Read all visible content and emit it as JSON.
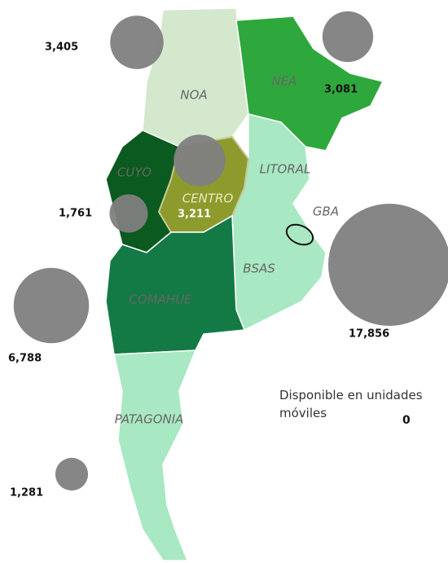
{
  "regions": [
    "NOA",
    "NEA",
    "CUYO",
    "CENTRO",
    "LITORAL",
    "GBA",
    "BSAS",
    "COMAHUE",
    "PATAGONIA"
  ],
  "bubbles": [
    {
      "value": 3405,
      "label": "3,405"
    },
    {
      "value": 3081,
      "label": "3,081"
    },
    {
      "value": 3211,
      "label": "3,211"
    },
    {
      "value": 1761,
      "label": "1,761"
    },
    {
      "value": 17856,
      "label": "17,856"
    },
    {
      "value": 6788,
      "label": "6,788"
    },
    {
      "value": 1281,
      "label": "1,281"
    }
  ],
  "note": {
    "text": "Disponible en unidades móviles",
    "value": 0
  }
}
